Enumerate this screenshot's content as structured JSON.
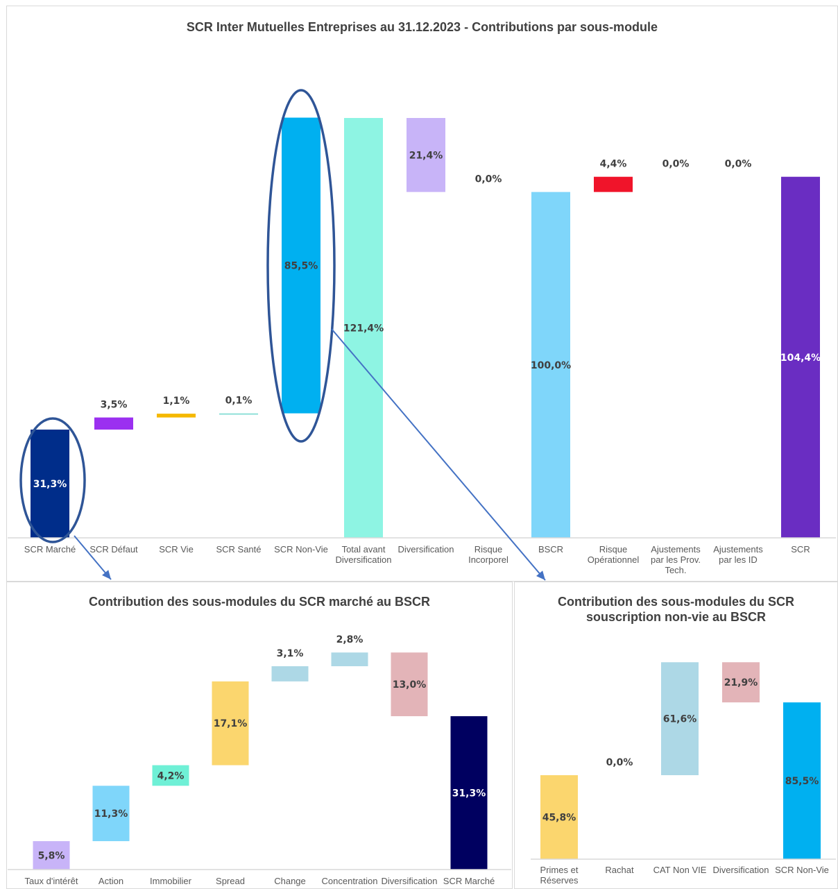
{
  "colors": {
    "scr_marche": "#002D8A",
    "scr_defaut": "#9B30F0",
    "scr_vie": "#F5B800",
    "scr_sante": "#8FE0D8",
    "scr_non_vie": "#00B0F0",
    "total_avant": "#8EF4E3",
    "diversification": "#C8B4F8",
    "risque_incorporel": "#FFFFFF",
    "bscr": "#7FD6FA",
    "risque_operationnel": "#F0142A",
    "scr": "#6A2DC2",
    "taux": "#C8B4F8",
    "action": "#7FD6FA",
    "immobilier": "#6FF0D6",
    "spread": "#FBD66E",
    "change": "#ADD8E6",
    "concentration": "#ADD8E6",
    "mkt_diversification": "#E3B4B8",
    "scr_marche_dark": "#000060",
    "primes": "#FBD66E",
    "cat": "#ADD8E6",
    "nv_diversification": "#E3B4B8",
    "scr_non_vie_total": "#00B0F0",
    "ellipse": "#2F5597",
    "arrow": "#4472C4"
  },
  "chart_data": [
    {
      "type": "bar",
      "subtype": "waterfall",
      "title": "SCR Inter Mutuelles Entreprises au 31.12.2023 - Contributions par sous-module",
      "categories": [
        [
          "SCR Marché"
        ],
        [
          "SCR Défaut"
        ],
        [
          "SCR Vie"
        ],
        [
          "SCR Santé"
        ],
        [
          "SCR Non-Vie"
        ],
        [
          "Total avant",
          "Diversification"
        ],
        [
          "Diversification"
        ],
        [
          "Risque",
          "Incorporel"
        ],
        [
          "BSCR"
        ],
        [
          "Risque",
          "Opérationnel"
        ],
        [
          "Ajustements",
          "par les Prov.",
          "Tech."
        ],
        [
          "Ajustements",
          "par les ID"
        ],
        [
          "SCR"
        ]
      ],
      "values": [
        31.3,
        3.5,
        1.1,
        0.1,
        85.5,
        121.4,
        -21.4,
        0.0,
        100.0,
        4.4,
        0.0,
        0.0,
        104.4
      ],
      "data_labels": [
        "31,3%",
        "3,5%",
        "1,1%",
        "0,1%",
        "85,5%",
        "121,4%",
        "21,4%",
        "0,0%",
        "100,0%",
        "4,4%",
        "0,0%",
        "0,0%",
        "104,4%"
      ],
      "ylim": [
        0,
        127
      ],
      "grid": false,
      "legend": "none"
    },
    {
      "type": "bar",
      "subtype": "waterfall",
      "title": "Contribution des sous-modules du SCR marché au BSCR",
      "categories": [
        [
          "Taux d'intérêt"
        ],
        [
          "Action"
        ],
        [
          "Immobilier"
        ],
        [
          "Spread"
        ],
        [
          "Change"
        ],
        [
          "Concentration"
        ],
        [
          "Diversification"
        ],
        [
          "SCR Marché"
        ]
      ],
      "values": [
        5.8,
        11.3,
        4.2,
        17.1,
        3.1,
        2.8,
        -13.0,
        31.3
      ],
      "data_labels": [
        "5,8%",
        "11,3%",
        "4,2%",
        "17,1%",
        "3,1%",
        "2,8%",
        "13,0%",
        "31,3%"
      ],
      "ylim": [
        0,
        45
      ],
      "grid": false,
      "legend": "none"
    },
    {
      "type": "bar",
      "subtype": "waterfall",
      "title": "Contribution des sous-modules du SCR souscription non-vie au BSCR",
      "categories": [
        [
          "Primes et",
          "Réserves"
        ],
        [
          "Rachat"
        ],
        [
          "CAT Non VIE"
        ],
        [
          "Diversification"
        ],
        [
          "SCR Non-Vie"
        ]
      ],
      "values": [
        45.8,
        0.0,
        61.6,
        -21.9,
        85.5
      ],
      "data_labels": [
        "45,8%",
        "0,0%",
        "61,6%",
        "21,9%",
        "85,5%"
      ],
      "ylim": [
        0,
        112
      ],
      "grid": false,
      "legend": "none"
    }
  ],
  "titles": {
    "top": "SCR Inter Mutuelles Entreprises au 31.12.2023 - Contributions par sous-module",
    "bottom_left": "Contribution des sous-modules du SCR marché au BSCR",
    "bottom_right_line1": "Contribution des sous-modules du SCR",
    "bottom_right_line2": "souscription non-vie au BSCR"
  }
}
